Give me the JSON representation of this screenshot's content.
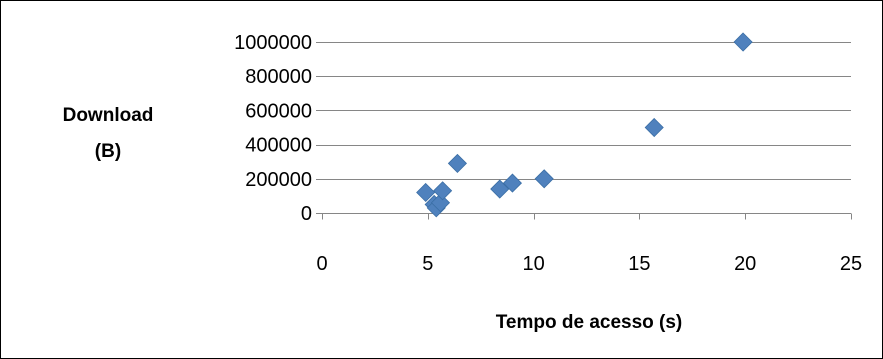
{
  "chart_data": {
    "type": "scatter",
    "title": "",
    "xlabel": "Tempo de acesso  (s)",
    "ylabel_lines": [
      "Download",
      "(B)"
    ],
    "xlim": [
      0,
      25
    ],
    "ylim": [
      0,
      1000000
    ],
    "x_ticks": [
      "0",
      "5",
      "10",
      "15",
      "20",
      "25"
    ],
    "y_ticks": [
      "0",
      "200000",
      "400000",
      "600000",
      "800000",
      "1000000"
    ],
    "grid": "horizontal",
    "legend": "none",
    "marker_color": "#4F81BD",
    "series": [
      {
        "points": [
          {
            "x": 4.9,
            "y": 120000
          },
          {
            "x": 5.3,
            "y": 50000
          },
          {
            "x": 5.4,
            "y": 30000
          },
          {
            "x": 5.6,
            "y": 60000
          },
          {
            "x": 5.7,
            "y": 130000
          },
          {
            "x": 6.4,
            "y": 290000
          },
          {
            "x": 8.4,
            "y": 140000
          },
          {
            "x": 9.0,
            "y": 175000
          },
          {
            "x": 10.5,
            "y": 200000
          },
          {
            "x": 15.7,
            "y": 500000
          },
          {
            "x": 19.9,
            "y": 1000000
          }
        ]
      }
    ]
  }
}
